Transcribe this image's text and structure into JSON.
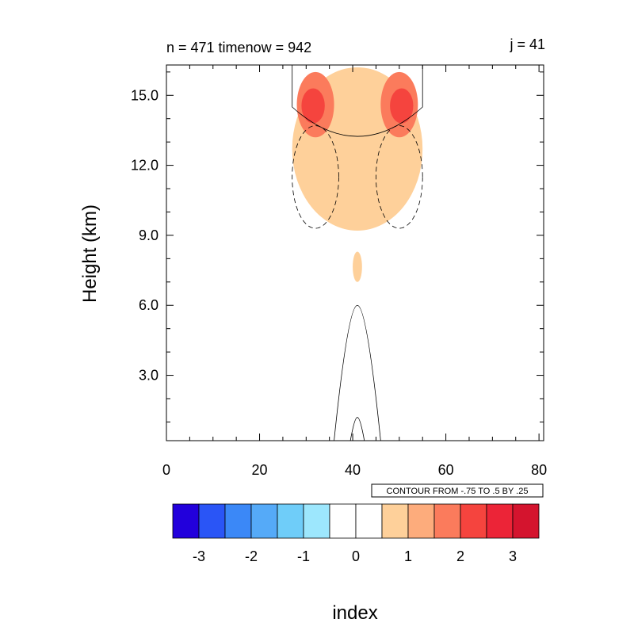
{
  "chart_data": {
    "type": "contour",
    "title_left": "n = 471 timenow = 942",
    "title_right": "j = 41",
    "xlabel": "index",
    "ylabel": "Height (km)",
    "xlim": [
      0,
      81
    ],
    "ylim": [
      0.2,
      16.3
    ],
    "x_ticks": [
      0,
      20,
      40,
      60,
      80
    ],
    "x_tick_labels": [
      "0",
      "20",
      "40",
      "60",
      "80"
    ],
    "y_ticks": [
      3.0,
      6.0,
      9.0,
      12.0,
      15.0
    ],
    "y_tick_labels": [
      "3.0",
      "6.0",
      "9.0",
      "12.0",
      "15.0"
    ],
    "contour_info": "CONTOUR FROM -.75 TO .5 BY .25",
    "colorbar": {
      "colors": [
        "#2200dc",
        "#2a55f6",
        "#3b88f7",
        "#55aaf8",
        "#6fcdf9",
        "#9de7fd",
        "#ffffff",
        "#ffffff",
        "#fed09a",
        "#fdac7c",
        "#fb7b5c",
        "#f5443e",
        "#ec2437",
        "#d4142e"
      ],
      "tick_values": [
        -3,
        -2,
        -1,
        0,
        1,
        2,
        3
      ],
      "tick_labels": [
        "-3",
        "-2",
        "-1",
        "0",
        "1",
        "2",
        "3"
      ]
    },
    "shaded_regions": [
      {
        "level": "1",
        "color": "#fed09a",
        "x_range": [
          27,
          55
        ],
        "y_range": [
          9.2,
          16.2
        ]
      },
      {
        "level": "1",
        "color": "#fed09a",
        "x_range": [
          40,
          42
        ],
        "y_range": [
          7.0,
          8.3
        ]
      },
      {
        "level": "2",
        "color": "#fb7b5c",
        "x_range": [
          28,
          36
        ],
        "y_range": [
          13.2,
          16.0
        ]
      },
      {
        "level": "2",
        "color": "#fb7b5c",
        "x_range": [
          46,
          54
        ],
        "y_range": [
          13.2,
          16.0
        ]
      },
      {
        "level": "3",
        "color": "#f5443e",
        "x_range": [
          29,
          34
        ],
        "y_range": [
          13.8,
          15.3
        ]
      },
      {
        "level": "3",
        "color": "#f5443e",
        "x_range": [
          48,
          53
        ],
        "y_range": [
          13.8,
          15.3
        ]
      }
    ],
    "contour_lines": [
      {
        "style": "solid",
        "shape": "spike",
        "x_range": [
          36,
          46
        ],
        "y_range": [
          0.2,
          6.0
        ]
      },
      {
        "style": "solid",
        "shape": "spike",
        "x_range": [
          39.5,
          42.5
        ],
        "y_range": [
          0.2,
          1.2
        ]
      },
      {
        "style": "solid",
        "shape": "cap",
        "x_range": [
          27,
          55
        ],
        "y_range": [
          14.5,
          16.3
        ]
      },
      {
        "style": "dashed",
        "shape": "ellipse",
        "center": [
          32,
          11.5
        ],
        "radii": [
          5,
          2.2
        ]
      },
      {
        "style": "dashed",
        "shape": "ellipse",
        "center": [
          50,
          11.5
        ],
        "radii": [
          5,
          2.2
        ]
      }
    ]
  }
}
